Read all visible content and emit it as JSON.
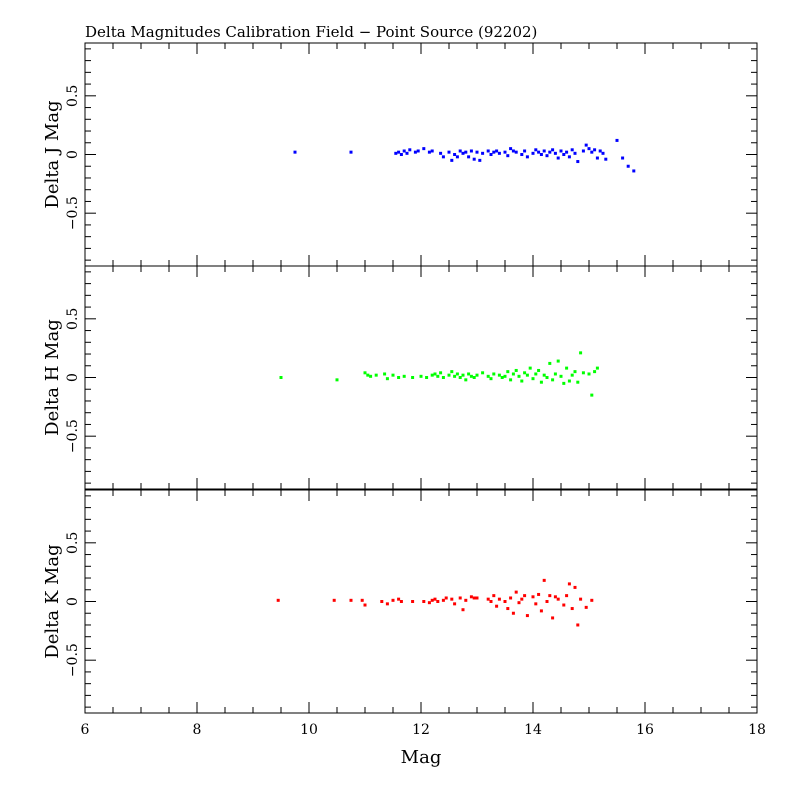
{
  "chart_data": {
    "type": "scatter",
    "title": "Delta Magnitudes Calibration Field − Point Source (92202)",
    "xlabel": "Mag",
    "xlim": [
      6,
      18
    ],
    "x_ticks": [
      6,
      8,
      10,
      12,
      14,
      16,
      18
    ],
    "x_tick_labels": [
      "6",
      "8",
      "10",
      "12",
      "14",
      "16",
      "18"
    ],
    "panels": [
      {
        "name": "J",
        "ylabel": "Delta J Mag",
        "color": "#0000ff",
        "ylim": [
          -0.95,
          0.95
        ],
        "y_ticks": [
          -0.5,
          0,
          0.5
        ],
        "y_tick_labels": [
          "−0.5",
          "0",
          "0.5"
        ],
        "x": [
          9.75,
          10.75,
          11.55,
          11.6,
          11.65,
          11.7,
          11.75,
          11.8,
          11.9,
          11.95,
          12.05,
          12.15,
          12.2,
          12.35,
          12.4,
          12.5,
          12.55,
          12.6,
          12.65,
          12.7,
          12.75,
          12.8,
          12.85,
          12.9,
          12.95,
          13.0,
          13.05,
          13.1,
          13.2,
          13.25,
          13.3,
          13.35,
          13.4,
          13.5,
          13.55,
          13.6,
          13.65,
          13.7,
          13.8,
          13.85,
          13.9,
          14.0,
          14.05,
          14.1,
          14.15,
          14.2,
          14.25,
          14.3,
          14.35,
          14.4,
          14.45,
          14.5,
          14.55,
          14.6,
          14.65,
          14.7,
          14.75,
          14.8,
          14.9,
          14.95,
          15.0,
          15.05,
          15.1,
          15.15,
          15.2,
          15.25,
          15.3,
          15.5,
          15.6,
          15.7,
          15.8
        ],
        "y": [
          0.02,
          0.02,
          0.01,
          0.02,
          0.0,
          0.03,
          0.01,
          0.04,
          0.02,
          0.03,
          0.05,
          0.02,
          0.03,
          0.01,
          -0.02,
          0.02,
          -0.05,
          0.0,
          -0.02,
          0.03,
          0.01,
          0.02,
          -0.02,
          0.03,
          -0.04,
          0.02,
          -0.05,
          0.01,
          0.03,
          0.0,
          0.02,
          0.03,
          0.01,
          0.02,
          -0.01,
          0.05,
          0.03,
          0.02,
          0.0,
          0.03,
          -0.02,
          0.01,
          0.04,
          0.02,
          0.0,
          0.03,
          -0.01,
          0.02,
          0.04,
          0.01,
          -0.03,
          0.03,
          0.0,
          0.02,
          -0.02,
          0.04,
          0.01,
          -0.06,
          0.03,
          0.08,
          0.05,
          0.02,
          0.04,
          -0.03,
          0.03,
          0.01,
          -0.04,
          0.12,
          -0.03,
          -0.1,
          -0.14
        ]
      },
      {
        "name": "H",
        "ylabel": "Delta H Mag",
        "color": "#00ff00",
        "ylim": [
          -0.95,
          0.95
        ],
        "y_ticks": [
          -0.5,
          0,
          0.5
        ],
        "y_tick_labels": [
          "−0.5",
          "0",
          "0.5"
        ],
        "x": [
          9.5,
          10.5,
          11.0,
          11.05,
          11.1,
          11.2,
          11.35,
          11.4,
          11.5,
          11.6,
          11.7,
          11.85,
          12.0,
          12.1,
          12.2,
          12.25,
          12.3,
          12.35,
          12.4,
          12.5,
          12.55,
          12.6,
          12.65,
          12.7,
          12.75,
          12.8,
          12.85,
          12.9,
          12.95,
          13.0,
          13.1,
          13.2,
          13.25,
          13.3,
          13.4,
          13.45,
          13.5,
          13.55,
          13.6,
          13.65,
          13.7,
          13.75,
          13.8,
          13.85,
          13.9,
          13.95,
          14.0,
          14.05,
          14.1,
          14.15,
          14.2,
          14.25,
          14.3,
          14.35,
          14.4,
          14.45,
          14.5,
          14.55,
          14.6,
          14.65,
          14.7,
          14.75,
          14.8,
          14.85,
          14.9,
          15.0,
          15.05,
          15.1,
          15.15
        ],
        "y": [
          0.0,
          -0.02,
          0.04,
          0.02,
          0.01,
          0.02,
          0.03,
          -0.01,
          0.02,
          0.0,
          0.01,
          0.0,
          0.01,
          0.0,
          0.02,
          0.03,
          0.01,
          0.04,
          0.0,
          0.02,
          0.05,
          0.01,
          0.03,
          0.0,
          0.02,
          -0.02,
          0.03,
          0.01,
          0.0,
          0.02,
          0.04,
          0.01,
          -0.01,
          0.03,
          0.02,
          0.0,
          0.01,
          0.05,
          -0.02,
          0.03,
          0.06,
          0.01,
          -0.03,
          0.04,
          0.02,
          0.08,
          -0.01,
          0.03,
          0.06,
          -0.04,
          0.02,
          0.0,
          0.12,
          -0.02,
          0.03,
          0.14,
          0.01,
          -0.05,
          0.08,
          -0.03,
          0.02,
          0.05,
          -0.04,
          0.21,
          0.04,
          0.03,
          -0.15,
          0.05,
          0.08
        ]
      },
      {
        "name": "K",
        "ylabel": "Delta K Mag",
        "color": "#ff0000",
        "ylim": [
          -0.95,
          0.95
        ],
        "y_ticks": [
          -0.5,
          0,
          0.5
        ],
        "y_tick_labels": [
          "−0.5",
          "0",
          "0.5"
        ],
        "x": [
          9.45,
          10.45,
          10.75,
          10.95,
          11.0,
          11.3,
          11.4,
          11.5,
          11.6,
          11.65,
          11.85,
          12.05,
          12.15,
          12.2,
          12.25,
          12.3,
          12.4,
          12.45,
          12.55,
          12.6,
          12.7,
          12.75,
          12.8,
          12.9,
          12.95,
          13.0,
          13.2,
          13.25,
          13.3,
          13.35,
          13.4,
          13.5,
          13.55,
          13.6,
          13.65,
          13.7,
          13.75,
          13.8,
          13.85,
          13.9,
          14.0,
          14.05,
          14.1,
          14.15,
          14.2,
          14.25,
          14.3,
          14.35,
          14.4,
          14.45,
          14.55,
          14.6,
          14.65,
          14.7,
          14.75,
          14.8,
          14.85,
          14.95,
          15.05
        ],
        "y": [
          0.01,
          0.01,
          0.01,
          0.01,
          -0.03,
          0.0,
          -0.02,
          0.01,
          0.02,
          0.0,
          0.0,
          0.0,
          -0.01,
          0.01,
          0.02,
          0.0,
          0.01,
          0.03,
          0.02,
          -0.02,
          0.03,
          -0.07,
          0.01,
          0.04,
          0.03,
          0.03,
          0.02,
          0.0,
          0.05,
          -0.04,
          0.02,
          0.0,
          -0.06,
          0.03,
          -0.1,
          0.08,
          -0.01,
          0.02,
          0.05,
          -0.12,
          0.04,
          -0.02,
          0.06,
          -0.08,
          0.18,
          0.0,
          0.05,
          -0.14,
          0.04,
          0.02,
          -0.03,
          0.05,
          0.15,
          -0.06,
          0.12,
          -0.2,
          0.02,
          -0.05,
          0.01
        ]
      }
    ]
  }
}
